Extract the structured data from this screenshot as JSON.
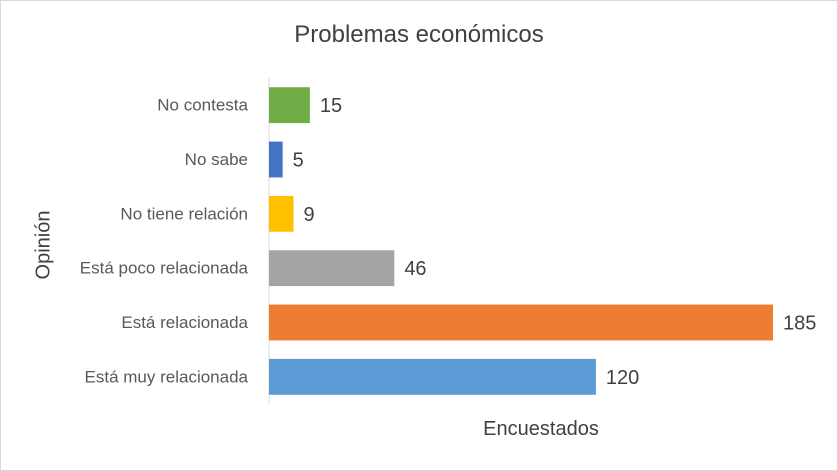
{
  "chart_data": {
    "type": "bar",
    "orientation": "horizontal",
    "title": "Problemas económicos",
    "xlabel": "Encuestados",
    "ylabel": "Opinión",
    "categories": [
      "No contesta",
      "No sabe",
      "No tiene relación",
      "Está poco relacionada",
      "Está relacionada",
      "Está muy relacionada"
    ],
    "values": [
      15,
      5,
      9,
      46,
      185,
      120
    ],
    "colors": [
      "#70ad47",
      "#4472c4",
      "#ffc000",
      "#a5a5a5",
      "#ed7d31",
      "#5b9bd5"
    ],
    "xlim": [
      0,
      185
    ],
    "grid": false,
    "legend": "none",
    "data_labels": true
  }
}
